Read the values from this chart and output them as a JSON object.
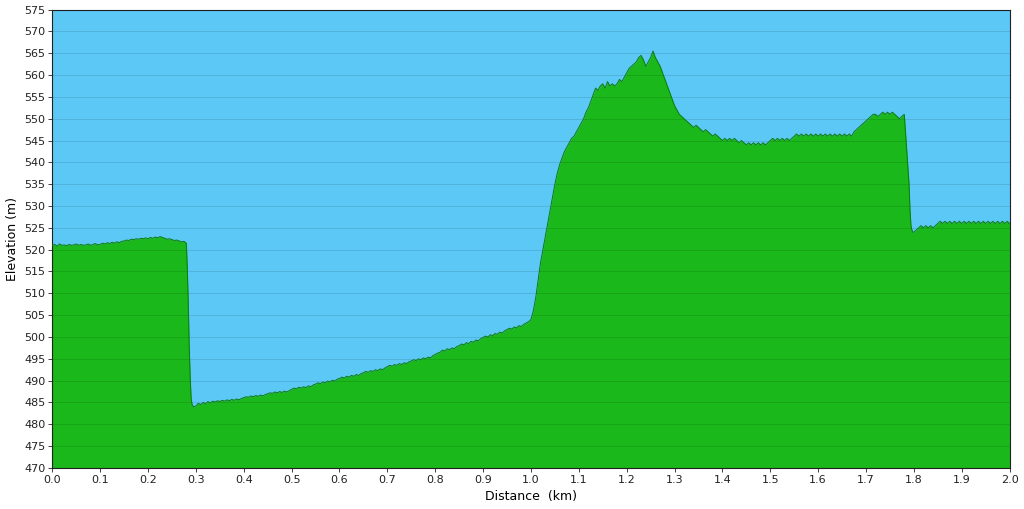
{
  "xlabel": "Distance  (km)",
  "ylabel": "Elevation (m)",
  "xlim": [
    0.0,
    2.0
  ],
  "ylim": [
    470,
    575
  ],
  "yticks": [
    470,
    475,
    480,
    485,
    490,
    495,
    500,
    505,
    510,
    515,
    520,
    525,
    530,
    535,
    540,
    545,
    550,
    555,
    560,
    565,
    570,
    575
  ],
  "xticks": [
    0.0,
    0.1,
    0.2,
    0.3,
    0.4,
    0.5,
    0.6,
    0.7,
    0.8,
    0.9,
    1.0,
    1.1,
    1.2,
    1.3,
    1.4,
    1.5,
    1.6,
    1.7,
    1.8,
    1.9,
    2.0
  ],
  "sky_color": "#5bc8f5",
  "fill_green": "#1ab81a",
  "grid_color_sky": "#78d4f8",
  "grid_color_green": "#17a317",
  "elevation_data": [
    [
      0.0,
      521.0
    ],
    [
      0.005,
      521.2
    ],
    [
      0.01,
      520.8
    ],
    [
      0.015,
      521.3
    ],
    [
      0.02,
      521.0
    ],
    [
      0.025,
      521.1
    ],
    [
      0.03,
      520.9
    ],
    [
      0.035,
      521.2
    ],
    [
      0.04,
      521.0
    ],
    [
      0.045,
      521.1
    ],
    [
      0.05,
      521.3
    ],
    [
      0.055,
      521.0
    ],
    [
      0.06,
      521.2
    ],
    [
      0.065,
      521.0
    ],
    [
      0.07,
      521.1
    ],
    [
      0.075,
      521.3
    ],
    [
      0.08,
      521.0
    ],
    [
      0.085,
      521.2
    ],
    [
      0.09,
      521.4
    ],
    [
      0.095,
      521.1
    ],
    [
      0.1,
      521.2
    ],
    [
      0.105,
      521.5
    ],
    [
      0.11,
      521.3
    ],
    [
      0.115,
      521.6
    ],
    [
      0.12,
      521.4
    ],
    [
      0.125,
      521.7
    ],
    [
      0.13,
      521.5
    ],
    [
      0.135,
      521.8
    ],
    [
      0.14,
      521.6
    ],
    [
      0.145,
      521.9
    ],
    [
      0.15,
      522.0
    ],
    [
      0.155,
      522.2
    ],
    [
      0.16,
      522.1
    ],
    [
      0.165,
      522.4
    ],
    [
      0.17,
      522.3
    ],
    [
      0.175,
      522.5
    ],
    [
      0.18,
      522.4
    ],
    [
      0.185,
      522.6
    ],
    [
      0.19,
      522.5
    ],
    [
      0.195,
      522.7
    ],
    [
      0.2,
      522.5
    ],
    [
      0.205,
      522.8
    ],
    [
      0.21,
      522.6
    ],
    [
      0.215,
      522.9
    ],
    [
      0.22,
      522.7
    ],
    [
      0.225,
      523.0
    ],
    [
      0.23,
      522.8
    ],
    [
      0.235,
      522.6
    ],
    [
      0.24,
      522.4
    ],
    [
      0.245,
      522.5
    ],
    [
      0.25,
      522.3
    ],
    [
      0.255,
      522.1
    ],
    [
      0.26,
      522.2
    ],
    [
      0.265,
      522.0
    ],
    [
      0.27,
      521.8
    ],
    [
      0.275,
      521.9
    ],
    [
      0.28,
      521.5
    ],
    [
      0.282,
      516.0
    ],
    [
      0.284,
      508.0
    ],
    [
      0.286,
      498.0
    ],
    [
      0.288,
      491.0
    ],
    [
      0.29,
      486.0
    ],
    [
      0.292,
      484.5
    ],
    [
      0.294,
      484.2
    ],
    [
      0.296,
      484.0
    ],
    [
      0.3,
      484.2
    ],
    [
      0.305,
      484.8
    ],
    [
      0.31,
      484.5
    ],
    [
      0.315,
      485.0
    ],
    [
      0.32,
      484.7
    ],
    [
      0.325,
      485.2
    ],
    [
      0.33,
      484.9
    ],
    [
      0.335,
      485.3
    ],
    [
      0.34,
      485.1
    ],
    [
      0.345,
      485.4
    ],
    [
      0.35,
      485.2
    ],
    [
      0.355,
      485.5
    ],
    [
      0.36,
      485.3
    ],
    [
      0.365,
      485.6
    ],
    [
      0.37,
      485.4
    ],
    [
      0.375,
      485.7
    ],
    [
      0.38,
      485.5
    ],
    [
      0.385,
      485.8
    ],
    [
      0.39,
      485.6
    ],
    [
      0.395,
      485.9
    ],
    [
      0.4,
      486.1
    ],
    [
      0.405,
      486.3
    ],
    [
      0.41,
      486.2
    ],
    [
      0.415,
      486.5
    ],
    [
      0.42,
      486.3
    ],
    [
      0.425,
      486.6
    ],
    [
      0.43,
      486.4
    ],
    [
      0.435,
      486.7
    ],
    [
      0.44,
      486.5
    ],
    [
      0.445,
      486.8
    ],
    [
      0.45,
      487.0
    ],
    [
      0.455,
      487.2
    ],
    [
      0.46,
      487.1
    ],
    [
      0.465,
      487.4
    ],
    [
      0.47,
      487.2
    ],
    [
      0.475,
      487.5
    ],
    [
      0.48,
      487.3
    ],
    [
      0.485,
      487.6
    ],
    [
      0.49,
      487.4
    ],
    [
      0.495,
      487.7
    ],
    [
      0.5,
      488.0
    ],
    [
      0.505,
      488.3
    ],
    [
      0.51,
      488.1
    ],
    [
      0.515,
      488.5
    ],
    [
      0.52,
      488.3
    ],
    [
      0.525,
      488.6
    ],
    [
      0.53,
      488.4
    ],
    [
      0.535,
      488.8
    ],
    [
      0.54,
      488.6
    ],
    [
      0.545,
      489.0
    ],
    [
      0.55,
      489.2
    ],
    [
      0.555,
      489.5
    ],
    [
      0.56,
      489.3
    ],
    [
      0.565,
      489.7
    ],
    [
      0.57,
      489.5
    ],
    [
      0.575,
      489.9
    ],
    [
      0.58,
      489.7
    ],
    [
      0.585,
      490.1
    ],
    [
      0.59,
      489.9
    ],
    [
      0.595,
      490.3
    ],
    [
      0.6,
      490.5
    ],
    [
      0.605,
      490.8
    ],
    [
      0.61,
      490.6
    ],
    [
      0.615,
      491.0
    ],
    [
      0.62,
      490.8
    ],
    [
      0.625,
      491.2
    ],
    [
      0.63,
      491.0
    ],
    [
      0.635,
      491.4
    ],
    [
      0.64,
      491.2
    ],
    [
      0.645,
      491.6
    ],
    [
      0.65,
      491.8
    ],
    [
      0.655,
      492.1
    ],
    [
      0.66,
      491.9
    ],
    [
      0.665,
      492.3
    ],
    [
      0.67,
      492.1
    ],
    [
      0.675,
      492.5
    ],
    [
      0.68,
      492.3
    ],
    [
      0.685,
      492.7
    ],
    [
      0.69,
      492.5
    ],
    [
      0.695,
      492.9
    ],
    [
      0.7,
      493.2
    ],
    [
      0.705,
      493.5
    ],
    [
      0.71,
      493.3
    ],
    [
      0.715,
      493.7
    ],
    [
      0.72,
      493.5
    ],
    [
      0.725,
      493.9
    ],
    [
      0.73,
      493.7
    ],
    [
      0.735,
      494.1
    ],
    [
      0.74,
      493.9
    ],
    [
      0.745,
      494.3
    ],
    [
      0.75,
      494.5
    ],
    [
      0.755,
      494.8
    ],
    [
      0.76,
      494.6
    ],
    [
      0.765,
      495.0
    ],
    [
      0.77,
      494.8
    ],
    [
      0.775,
      495.2
    ],
    [
      0.78,
      495.0
    ],
    [
      0.785,
      495.4
    ],
    [
      0.79,
      495.2
    ],
    [
      0.795,
      495.7
    ],
    [
      0.8,
      496.0
    ],
    [
      0.805,
      496.3
    ],
    [
      0.81,
      496.5
    ],
    [
      0.815,
      497.0
    ],
    [
      0.82,
      496.8
    ],
    [
      0.825,
      497.3
    ],
    [
      0.83,
      497.1
    ],
    [
      0.835,
      497.5
    ],
    [
      0.84,
      497.3
    ],
    [
      0.845,
      497.8
    ],
    [
      0.85,
      498.0
    ],
    [
      0.855,
      498.4
    ],
    [
      0.86,
      498.2
    ],
    [
      0.865,
      498.7
    ],
    [
      0.87,
      498.5
    ],
    [
      0.875,
      499.0
    ],
    [
      0.88,
      498.8
    ],
    [
      0.885,
      499.3
    ],
    [
      0.89,
      499.1
    ],
    [
      0.895,
      499.6
    ],
    [
      0.9,
      499.9
    ],
    [
      0.905,
      500.2
    ],
    [
      0.91,
      500.0
    ],
    [
      0.915,
      500.5
    ],
    [
      0.92,
      500.3
    ],
    [
      0.925,
      500.8
    ],
    [
      0.93,
      500.6
    ],
    [
      0.935,
      501.1
    ],
    [
      0.94,
      500.9
    ],
    [
      0.945,
      501.4
    ],
    [
      0.95,
      501.7
    ],
    [
      0.955,
      502.0
    ],
    [
      0.96,
      501.8
    ],
    [
      0.965,
      502.3
    ],
    [
      0.97,
      502.1
    ],
    [
      0.975,
      502.6
    ],
    [
      0.98,
      502.4
    ],
    [
      0.985,
      502.9
    ],
    [
      0.99,
      503.2
    ],
    [
      0.995,
      503.5
    ],
    [
      1.0,
      504.0
    ],
    [
      1.005,
      506.0
    ],
    [
      1.01,
      509.0
    ],
    [
      1.015,
      513.0
    ],
    [
      1.02,
      517.0
    ],
    [
      1.025,
      520.0
    ],
    [
      1.03,
      523.0
    ],
    [
      1.035,
      526.0
    ],
    [
      1.04,
      529.0
    ],
    [
      1.045,
      532.0
    ],
    [
      1.05,
      535.0
    ],
    [
      1.055,
      537.5
    ],
    [
      1.06,
      539.5
    ],
    [
      1.065,
      541.0
    ],
    [
      1.07,
      542.5
    ],
    [
      1.075,
      543.5
    ],
    [
      1.08,
      544.5
    ],
    [
      1.085,
      545.5
    ],
    [
      1.09,
      546.0
    ],
    [
      1.095,
      547.0
    ],
    [
      1.1,
      548.0
    ],
    [
      1.105,
      549.0
    ],
    [
      1.11,
      550.0
    ],
    [
      1.115,
      551.5
    ],
    [
      1.12,
      552.5
    ],
    [
      1.125,
      554.0
    ],
    [
      1.13,
      555.5
    ],
    [
      1.135,
      557.0
    ],
    [
      1.14,
      556.5
    ],
    [
      1.145,
      557.5
    ],
    [
      1.15,
      558.0
    ],
    [
      1.155,
      557.0
    ],
    [
      1.16,
      558.5
    ],
    [
      1.165,
      557.5
    ],
    [
      1.17,
      558.0
    ],
    [
      1.175,
      557.5
    ],
    [
      1.18,
      558.0
    ],
    [
      1.185,
      559.0
    ],
    [
      1.19,
      558.5
    ],
    [
      1.195,
      559.5
    ],
    [
      1.2,
      560.5
    ],
    [
      1.205,
      561.5
    ],
    [
      1.21,
      562.0
    ],
    [
      1.215,
      562.5
    ],
    [
      1.22,
      563.0
    ],
    [
      1.225,
      564.0
    ],
    [
      1.23,
      564.5
    ],
    [
      1.235,
      563.5
    ],
    [
      1.24,
      562.0
    ],
    [
      1.245,
      563.0
    ],
    [
      1.25,
      564.0
    ],
    [
      1.255,
      565.5
    ],
    [
      1.26,
      564.0
    ],
    [
      1.265,
      563.0
    ],
    [
      1.27,
      562.0
    ],
    [
      1.275,
      560.5
    ],
    [
      1.28,
      559.0
    ],
    [
      1.285,
      557.5
    ],
    [
      1.29,
      556.0
    ],
    [
      1.295,
      554.5
    ],
    [
      1.3,
      553.0
    ],
    [
      1.305,
      552.0
    ],
    [
      1.31,
      551.0
    ],
    [
      1.315,
      550.5
    ],
    [
      1.32,
      550.0
    ],
    [
      1.325,
      549.5
    ],
    [
      1.33,
      549.0
    ],
    [
      1.335,
      548.5
    ],
    [
      1.34,
      548.0
    ],
    [
      1.345,
      548.5
    ],
    [
      1.35,
      548.0
    ],
    [
      1.355,
      547.5
    ],
    [
      1.36,
      547.0
    ],
    [
      1.365,
      547.5
    ],
    [
      1.37,
      547.0
    ],
    [
      1.375,
      546.5
    ],
    [
      1.38,
      546.0
    ],
    [
      1.385,
      546.5
    ],
    [
      1.39,
      546.0
    ],
    [
      1.395,
      545.5
    ],
    [
      1.4,
      545.0
    ],
    [
      1.405,
      545.5
    ],
    [
      1.41,
      545.0
    ],
    [
      1.415,
      545.5
    ],
    [
      1.42,
      545.0
    ],
    [
      1.425,
      545.5
    ],
    [
      1.43,
      545.0
    ],
    [
      1.435,
      544.5
    ],
    [
      1.44,
      545.0
    ],
    [
      1.445,
      544.5
    ],
    [
      1.45,
      544.0
    ],
    [
      1.455,
      544.5
    ],
    [
      1.46,
      544.0
    ],
    [
      1.465,
      544.5
    ],
    [
      1.47,
      544.0
    ],
    [
      1.475,
      544.5
    ],
    [
      1.48,
      544.0
    ],
    [
      1.485,
      544.5
    ],
    [
      1.49,
      544.0
    ],
    [
      1.495,
      544.5
    ],
    [
      1.5,
      545.0
    ],
    [
      1.505,
      545.5
    ],
    [
      1.51,
      545.0
    ],
    [
      1.515,
      545.5
    ],
    [
      1.52,
      545.0
    ],
    [
      1.525,
      545.5
    ],
    [
      1.53,
      545.0
    ],
    [
      1.535,
      545.5
    ],
    [
      1.54,
      545.0
    ],
    [
      1.545,
      545.5
    ],
    [
      1.55,
      546.0
    ],
    [
      1.555,
      546.5
    ],
    [
      1.56,
      546.0
    ],
    [
      1.565,
      546.5
    ],
    [
      1.57,
      546.0
    ],
    [
      1.575,
      546.5
    ],
    [
      1.58,
      546.0
    ],
    [
      1.585,
      546.5
    ],
    [
      1.59,
      546.0
    ],
    [
      1.595,
      546.5
    ],
    [
      1.6,
      546.0
    ],
    [
      1.605,
      546.5
    ],
    [
      1.61,
      546.0
    ],
    [
      1.615,
      546.5
    ],
    [
      1.62,
      546.0
    ],
    [
      1.625,
      546.5
    ],
    [
      1.63,
      546.0
    ],
    [
      1.635,
      546.5
    ],
    [
      1.64,
      546.0
    ],
    [
      1.645,
      546.5
    ],
    [
      1.65,
      546.0
    ],
    [
      1.655,
      546.5
    ],
    [
      1.66,
      546.0
    ],
    [
      1.665,
      546.5
    ],
    [
      1.67,
      546.0
    ],
    [
      1.675,
      547.0
    ],
    [
      1.68,
      547.5
    ],
    [
      1.685,
      548.0
    ],
    [
      1.69,
      548.5
    ],
    [
      1.695,
      549.0
    ],
    [
      1.7,
      549.5
    ],
    [
      1.705,
      550.0
    ],
    [
      1.71,
      550.5
    ],
    [
      1.715,
      551.0
    ],
    [
      1.72,
      551.0
    ],
    [
      1.725,
      550.5
    ],
    [
      1.73,
      551.0
    ],
    [
      1.735,
      551.5
    ],
    [
      1.74,
      551.0
    ],
    [
      1.745,
      551.5
    ],
    [
      1.75,
      551.0
    ],
    [
      1.755,
      551.5
    ],
    [
      1.76,
      551.0
    ],
    [
      1.765,
      550.5
    ],
    [
      1.77,
      550.0
    ],
    [
      1.775,
      550.5
    ],
    [
      1.78,
      551.0
    ],
    [
      1.785,
      543.0
    ],
    [
      1.79,
      535.0
    ],
    [
      1.792,
      529.0
    ],
    [
      1.794,
      525.5
    ],
    [
      1.796,
      524.5
    ],
    [
      1.798,
      524.0
    ],
    [
      1.8,
      524.0
    ],
    [
      1.805,
      524.5
    ],
    [
      1.81,
      525.0
    ],
    [
      1.815,
      525.5
    ],
    [
      1.82,
      525.0
    ],
    [
      1.825,
      525.5
    ],
    [
      1.83,
      525.0
    ],
    [
      1.835,
      525.5
    ],
    [
      1.84,
      525.0
    ],
    [
      1.845,
      525.5
    ],
    [
      1.85,
      526.0
    ],
    [
      1.855,
      526.5
    ],
    [
      1.86,
      526.0
    ],
    [
      1.865,
      526.5
    ],
    [
      1.87,
      526.0
    ],
    [
      1.875,
      526.5
    ],
    [
      1.88,
      526.0
    ],
    [
      1.885,
      526.5
    ],
    [
      1.89,
      526.0
    ],
    [
      1.895,
      526.5
    ],
    [
      1.9,
      526.0
    ],
    [
      1.905,
      526.5
    ],
    [
      1.91,
      526.0
    ],
    [
      1.915,
      526.5
    ],
    [
      1.92,
      526.0
    ],
    [
      1.925,
      526.5
    ],
    [
      1.93,
      526.0
    ],
    [
      1.935,
      526.5
    ],
    [
      1.94,
      526.0
    ],
    [
      1.945,
      526.5
    ],
    [
      1.95,
      526.0
    ],
    [
      1.955,
      526.5
    ],
    [
      1.96,
      526.0
    ],
    [
      1.965,
      526.5
    ],
    [
      1.97,
      526.0
    ],
    [
      1.975,
      526.5
    ],
    [
      1.98,
      526.0
    ],
    [
      1.985,
      526.5
    ],
    [
      1.99,
      526.0
    ],
    [
      1.995,
      526.5
    ],
    [
      2.0,
      526.0
    ]
  ]
}
